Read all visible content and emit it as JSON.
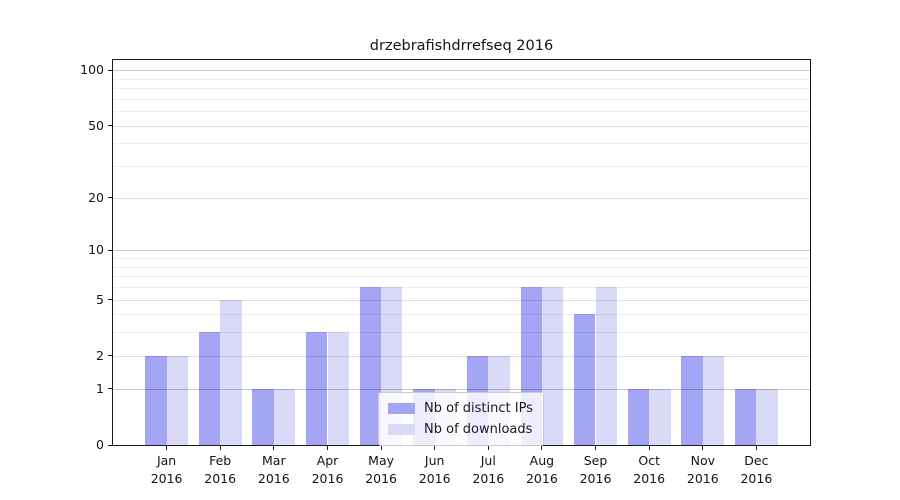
{
  "chart_data": {
    "type": "bar",
    "title": "drzebrafishdrrefseq 2016",
    "x": {
      "months": [
        "Jan",
        "Feb",
        "Mar",
        "Apr",
        "May",
        "Jun",
        "Jul",
        "Aug",
        "Sep",
        "Oct",
        "Nov",
        "Dec"
      ],
      "year": "2016"
    },
    "series": [
      {
        "name": "Nb of distinct IPs",
        "color": "#a5a5f5",
        "values": [
          2,
          3,
          1,
          3,
          6,
          1,
          2,
          6,
          4,
          1,
          2,
          1
        ]
      },
      {
        "name": "Nb of downloads",
        "color": "#d9d9f8",
        "values": [
          2,
          5,
          1,
          3,
          6,
          1,
          2,
          6,
          6,
          1,
          2,
          1
        ]
      }
    ],
    "y_axis": {
      "scale": "log10(1+v)",
      "tick_values": [
        0,
        1,
        2,
        5,
        10,
        20,
        50,
        100
      ],
      "tick_labels": [
        "0",
        "1",
        "2",
        "5",
        "10",
        "20",
        "50",
        "100"
      ],
      "ylim_top_value": 114
    },
    "gridlines": {
      "major": [
        1,
        10,
        100
      ],
      "labeled_minor": [
        2,
        5,
        20,
        50
      ],
      "minor": [
        3,
        4,
        6,
        7,
        8,
        9,
        30,
        40,
        60,
        70,
        80,
        90
      ]
    },
    "legend_position": "bottom-center",
    "colors": {
      "grid_major": "rgba(0,0,0,0.22)",
      "grid_mid": "rgba(0,0,0,0.125)",
      "grid_minor": "rgba(0,0,0,0.07)",
      "spine": "#1a1a1a",
      "text": "#141414",
      "background": "#ffffff"
    }
  }
}
